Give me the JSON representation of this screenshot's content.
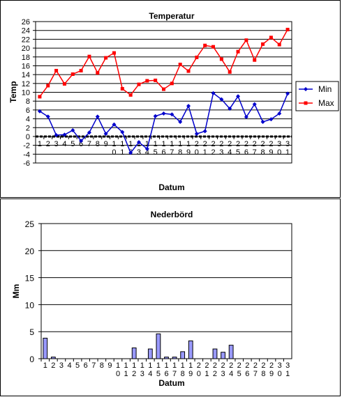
{
  "chart_data": [
    {
      "type": "line",
      "title": "Temperatur",
      "xlabel": "Datum",
      "ylabel": "Temp",
      "ylim": [
        -6,
        26
      ],
      "yticks": [
        -6,
        -4,
        -2,
        0,
        2,
        4,
        6,
        8,
        10,
        12,
        14,
        16,
        18,
        20,
        22,
        24,
        26
      ],
      "categories": [
        "1",
        "2",
        "3",
        "4",
        "5",
        "6",
        "7",
        "8",
        "9",
        "10",
        "11",
        "12",
        "13",
        "14",
        "15",
        "16",
        "17",
        "18",
        "19",
        "20",
        "21",
        "22",
        "23",
        "24",
        "25",
        "26",
        "27",
        "28",
        "29",
        "30",
        "31"
      ],
      "grid": true,
      "legend": "right",
      "series": [
        {
          "name": "Min",
          "color": "#0000cc",
          "marker": "diamond",
          "values": [
            5.7,
            4.5,
            0.3,
            0.4,
            1.4,
            -1.0,
            0.9,
            4.5,
            0.6,
            2.7,
            1.0,
            -3.7,
            -1.3,
            -2.8,
            4.6,
            5.2,
            5.0,
            3.3,
            6.9,
            0.6,
            1.2,
            9.8,
            8.4,
            6.3,
            9.1,
            4.4,
            7.3,
            3.3,
            3.9,
            5.2,
            9.7
          ]
        },
        {
          "name": "Max",
          "color": "#ff0000",
          "marker": "square",
          "values": [
            9.0,
            11.5,
            14.9,
            11.9,
            14.1,
            14.9,
            18.1,
            14.4,
            17.8,
            18.9,
            10.8,
            9.4,
            11.8,
            12.6,
            12.7,
            10.7,
            12.0,
            16.3,
            14.8,
            17.9,
            20.6,
            20.3,
            17.5,
            14.6,
            19.2,
            21.8,
            17.3,
            20.9,
            22.4,
            20.8,
            24.2
          ]
        }
      ]
    },
    {
      "type": "bar",
      "title": "Nederbörd",
      "xlabel": "Datum",
      "ylabel": "Mm",
      "ylim": [
        0,
        25
      ],
      "yticks": [
        0,
        5,
        10,
        15,
        20,
        25
      ],
      "categories": [
        "1",
        "2",
        "3",
        "4",
        "5",
        "6",
        "7",
        "8",
        "9",
        "10",
        "11",
        "12",
        "13",
        "14",
        "15",
        "16",
        "17",
        "18",
        "19",
        "20",
        "21",
        "22",
        "23",
        "24",
        "25",
        "26",
        "27",
        "28",
        "29",
        "30",
        "31"
      ],
      "grid": true,
      "series": [
        {
          "name": "",
          "color": "#9999ff",
          "values": [
            3.8,
            0.3,
            0,
            0,
            0,
            0,
            0,
            0,
            0,
            0,
            0,
            2.0,
            0,
            1.8,
            4.6,
            0.3,
            0.3,
            1.3,
            3.3,
            0,
            0,
            1.8,
            1.2,
            2.5,
            0,
            0,
            0,
            0,
            0,
            0,
            0
          ]
        }
      ]
    }
  ]
}
